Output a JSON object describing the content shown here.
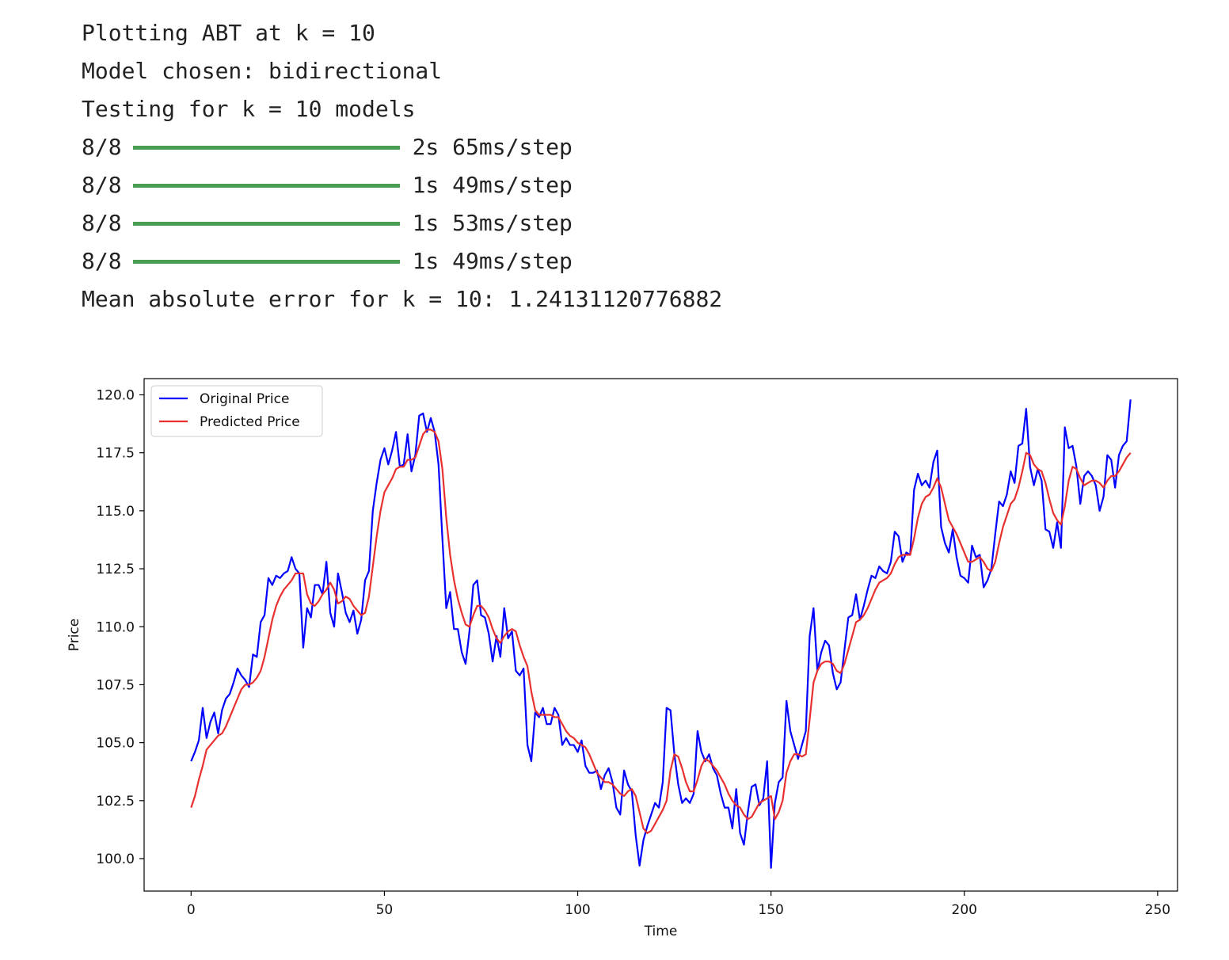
{
  "output": {
    "lines_top": [
      "Plotting ABT at k = 10",
      "Model chosen: bidirectional",
      "Testing for k = 10 models"
    ],
    "progress": [
      {
        "count": "8/8",
        "time": "2s 65ms/step"
      },
      {
        "count": "8/8",
        "time": "1s 49ms/step"
      },
      {
        "count": "8/8",
        "time": "1s 53ms/step"
      },
      {
        "count": "8/8",
        "time": "1s 49ms/step"
      }
    ],
    "line_bottom": "Mean absolute error for k = 10: 1.24131120776882"
  },
  "chart_data": {
    "type": "line",
    "x_label": "Time",
    "y_label": "Price",
    "legend": "upper left",
    "xlim": [
      -12.15,
      255.15
    ],
    "ylim": [
      98.6,
      120.7
    ],
    "xticks": [
      0,
      50,
      100,
      150,
      200,
      250
    ],
    "yticks": [
      {
        "value": 100,
        "label": "100.0"
      },
      {
        "value": 102.5,
        "label": "102.5"
      },
      {
        "value": 105,
        "label": "105.0"
      },
      {
        "value": 107.5,
        "label": "107.5"
      },
      {
        "value": 110,
        "label": "110.0"
      },
      {
        "value": 112.5,
        "label": "112.5"
      },
      {
        "value": 115,
        "label": "115.0"
      },
      {
        "value": 117.5,
        "label": "117.5"
      },
      {
        "value": 120,
        "label": "120.0"
      }
    ],
    "x": [
      0,
      1,
      2,
      3,
      4,
      5,
      6,
      7,
      8,
      9,
      10,
      11,
      12,
      13,
      14,
      15,
      16,
      17,
      18,
      19,
      20,
      21,
      22,
      23,
      24,
      25,
      26,
      27,
      28,
      29,
      30,
      31,
      32,
      33,
      34,
      35,
      36,
      37,
      38,
      39,
      40,
      41,
      42,
      43,
      44,
      45,
      46,
      47,
      48,
      49,
      50,
      51,
      52,
      53,
      54,
      55,
      56,
      57,
      58,
      59,
      60,
      61,
      62,
      63,
      64,
      65,
      66,
      67,
      68,
      69,
      70,
      71,
      72,
      73,
      74,
      75,
      76,
      77,
      78,
      79,
      80,
      81,
      82,
      83,
      84,
      85,
      86,
      87,
      88,
      89,
      90,
      91,
      92,
      93,
      94,
      95,
      96,
      97,
      98,
      99,
      100,
      101,
      102,
      103,
      104,
      105,
      106,
      107,
      108,
      109,
      110,
      111,
      112,
      113,
      114,
      115,
      116,
      117,
      118,
      119,
      120,
      121,
      122,
      123,
      124,
      125,
      126,
      127,
      128,
      129,
      130,
      131,
      132,
      133,
      134,
      135,
      136,
      137,
      138,
      139,
      140,
      141,
      142,
      143,
      144,
      145,
      146,
      147,
      148,
      149,
      150,
      151,
      152,
      153,
      154,
      155,
      156,
      157,
      158,
      159,
      160,
      161,
      162,
      163,
      164,
      165,
      166,
      167,
      168,
      169,
      170,
      171,
      172,
      173,
      174,
      175,
      176,
      177,
      178,
      179,
      180,
      181,
      182,
      183,
      184,
      185,
      186,
      187,
      188,
      189,
      190,
      191,
      192,
      193,
      194,
      195,
      196,
      197,
      198,
      199,
      200,
      201,
      202,
      203,
      204,
      205,
      206,
      207,
      208,
      209,
      210,
      211,
      212,
      213,
      214,
      215,
      216,
      217,
      218,
      219,
      220,
      221,
      222,
      223,
      224,
      225,
      226,
      227,
      228,
      229,
      230,
      231,
      232,
      233,
      234,
      235,
      236,
      237,
      238,
      239,
      240,
      241,
      242,
      243
    ],
    "series": [
      {
        "name": "Original Price",
        "color": "#0000ff",
        "values": [
          104.2,
          104.6,
          105.1,
          106.5,
          105.2,
          105.9,
          106.3,
          105.4,
          106.4,
          106.9,
          107.1,
          107.6,
          108.2,
          107.9,
          107.7,
          107.4,
          108.8,
          108.7,
          110.2,
          110.5,
          112.1,
          111.8,
          112.2,
          112.1,
          112.3,
          112.4,
          113.0,
          112.5,
          112.3,
          109.1,
          110.8,
          110.4,
          111.8,
          111.8,
          111.4,
          112.8,
          110.6,
          110.0,
          112.3,
          111.5,
          110.6,
          110.2,
          110.7,
          109.7,
          110.3,
          112.0,
          112.4,
          115.0,
          116.2,
          117.2,
          117.7,
          117.0,
          117.6,
          118.4,
          116.9,
          117.0,
          118.3,
          116.7,
          117.4,
          119.1,
          119.2,
          118.4,
          119.0,
          118.4,
          117.0,
          113.8,
          110.8,
          111.5,
          109.9,
          109.9,
          108.9,
          108.4,
          109.8,
          111.8,
          112.0,
          110.5,
          110.4,
          109.7,
          108.5,
          109.6,
          108.7,
          110.8,
          109.5,
          109.8,
          108.1,
          107.9,
          108.2,
          104.9,
          104.2,
          106.3,
          106.1,
          106.5,
          105.8,
          105.8,
          106.5,
          106.2,
          104.9,
          105.2,
          104.9,
          104.9,
          104.6,
          105.1,
          104.0,
          103.7,
          103.7,
          103.8,
          103.0,
          103.6,
          103.9,
          103.3,
          102.2,
          101.9,
          103.8,
          103.2,
          102.9,
          101.0,
          99.7,
          100.8,
          101.4,
          101.9,
          102.4,
          102.2,
          103.3,
          106.5,
          106.4,
          104.5,
          103.2,
          102.4,
          102.6,
          102.4,
          102.8,
          105.5,
          104.6,
          104.2,
          104.5,
          103.9,
          103.6,
          102.8,
          102.2,
          102.2,
          101.3,
          103.0,
          101.1,
          100.6,
          102.0,
          103.1,
          103.2,
          102.3,
          102.6,
          104.2,
          99.6,
          102.4,
          103.3,
          103.5,
          106.8,
          105.5,
          104.9,
          104.3,
          104.9,
          105.5,
          109.6,
          110.8,
          108.1,
          108.9,
          109.4,
          109.2,
          108.0,
          107.3,
          107.6,
          109.0,
          110.4,
          110.5,
          111.4,
          110.3,
          110.9,
          111.6,
          112.2,
          112.1,
          112.6,
          112.4,
          112.3,
          112.8,
          114.1,
          113.9,
          112.8,
          113.2,
          113.1,
          115.9,
          116.6,
          116.1,
          116.3,
          116.0,
          117.1,
          117.6,
          114.3,
          113.6,
          113.2,
          114.2,
          113.0,
          112.2,
          112.1,
          111.9,
          113.5,
          113.0,
          113.1,
          111.7,
          112.0,
          112.5,
          114.0,
          115.4,
          115.2,
          115.7,
          116.7,
          116.2,
          117.8,
          117.9,
          119.4,
          116.9,
          116.1,
          116.8,
          116.3,
          114.2,
          114.1,
          113.4,
          114.5,
          113.4,
          118.6,
          117.7,
          117.8,
          116.9,
          115.3,
          116.5,
          116.7,
          116.5,
          116.1,
          115.0,
          115.6,
          117.4,
          117.2,
          116.0,
          117.4,
          117.8,
          118.0,
          119.8
        ]
      },
      {
        "name": "Predicted Price",
        "color": "#e8312f",
        "values": [
          102.2,
          102.7,
          103.4,
          104.0,
          104.7,
          104.9,
          105.1,
          105.3,
          105.4,
          105.7,
          106.1,
          106.5,
          106.9,
          107.3,
          107.5,
          107.5,
          107.6,
          107.8,
          108.1,
          108.7,
          109.5,
          110.3,
          110.9,
          111.3,
          111.6,
          111.8,
          112.0,
          112.3,
          112.3,
          112.3,
          111.4,
          111.0,
          110.9,
          111.1,
          111.4,
          111.6,
          111.9,
          111.6,
          111.0,
          111.1,
          111.3,
          111.2,
          110.9,
          110.7,
          110.5,
          110.6,
          111.3,
          112.6,
          113.9,
          115.0,
          115.8,
          116.1,
          116.4,
          116.8,
          116.9,
          116.9,
          117.2,
          117.2,
          117.3,
          117.8,
          118.3,
          118.5,
          118.5,
          118.4,
          118.0,
          116.8,
          114.7,
          113.1,
          112.0,
          111.2,
          110.6,
          110.1,
          110.0,
          110.5,
          110.9,
          110.9,
          110.7,
          110.4,
          109.9,
          109.5,
          109.3,
          109.6,
          109.8,
          109.9,
          109.8,
          109.2,
          108.7,
          108.3,
          107.2,
          106.4,
          106.2,
          106.2,
          106.2,
          106.2,
          106.1,
          106.1,
          105.8,
          105.5,
          105.3,
          105.2,
          105.0,
          104.9,
          104.8,
          104.5,
          104.1,
          103.7,
          103.5,
          103.3,
          103.3,
          103.2,
          103.0,
          102.8,
          102.7,
          102.9,
          103.0,
          102.7,
          102.0,
          101.3,
          101.1,
          101.2,
          101.5,
          101.8,
          102.1,
          102.5,
          103.8,
          104.5,
          104.4,
          103.9,
          103.3,
          102.9,
          102.9,
          103.4,
          104.0,
          104.3,
          104.2,
          104.0,
          103.8,
          103.5,
          103.2,
          102.8,
          102.5,
          102.3,
          102.2,
          101.9,
          101.7,
          101.8,
          102.1,
          102.4,
          102.5,
          102.6,
          102.7,
          101.7,
          102.0,
          102.5,
          103.7,
          104.2,
          104.5,
          104.5,
          104.4,
          104.5,
          106.0,
          107.6,
          108.1,
          108.4,
          108.5,
          108.5,
          108.4,
          108.1,
          108.0,
          108.4,
          109.0,
          109.6,
          110.2,
          110.3,
          110.5,
          110.8,
          111.2,
          111.6,
          111.9,
          112.0,
          112.1,
          112.3,
          112.7,
          113.0,
          113.1,
          113.1,
          113.1,
          113.8,
          114.7,
          115.3,
          115.6,
          115.7,
          116.0,
          116.4,
          116.0,
          115.3,
          114.6,
          114.3,
          114.0,
          113.6,
          113.2,
          112.8,
          112.8,
          112.9,
          113.0,
          112.8,
          112.5,
          112.4,
          112.8,
          113.6,
          114.3,
          114.8,
          115.3,
          115.5,
          116.0,
          116.7,
          117.5,
          117.4,
          117.0,
          116.8,
          116.7,
          116.2,
          115.5,
          114.9,
          114.6,
          114.4,
          115.2,
          116.3,
          116.9,
          116.8,
          116.4,
          116.1,
          116.2,
          116.3,
          116.3,
          116.2,
          116.0,
          116.3,
          116.5,
          116.5,
          116.7,
          117.0,
          117.3,
          117.5
        ]
      }
    ]
  }
}
